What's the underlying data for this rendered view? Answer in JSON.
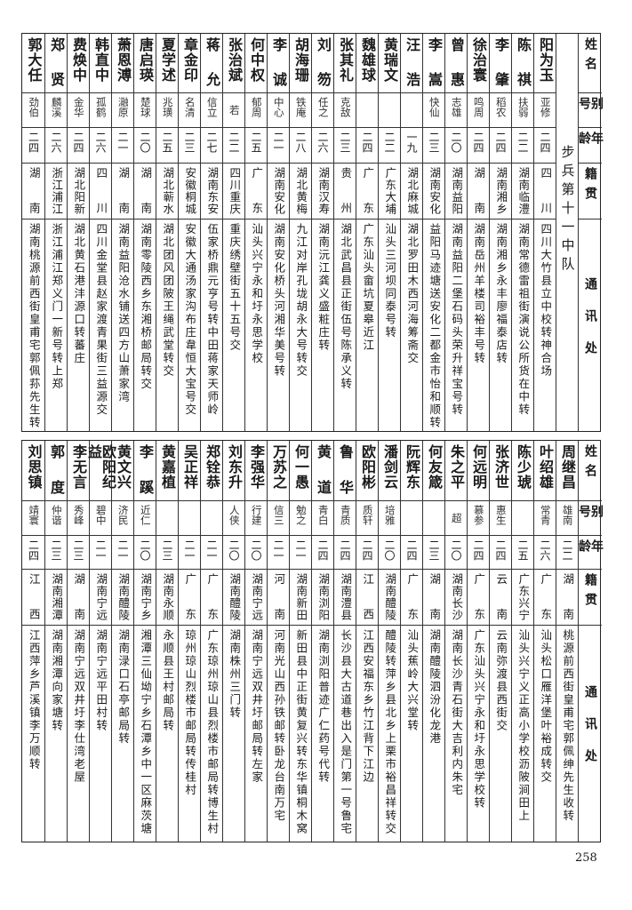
{
  "headers": {
    "name": "姓名",
    "alias": "别号",
    "age": "年龄",
    "origin": "籍贯",
    "address": "通讯处"
  },
  "section_top": {
    "label": "步兵第十一中队",
    "rows": [
      {
        "name": "阳为玉",
        "alias": "亚修",
        "age": "二四",
        "origin": "四川",
        "address": "四川大竹县立中校转神合场"
      },
      {
        "name": "陈祺",
        "alias": "扶弱",
        "age": "二二",
        "origin": "湖南临澧",
        "address": "湖南常德雷祖街演说公所货在中转"
      },
      {
        "name": "李肇",
        "alias": "稻农",
        "age": "二四",
        "origin": "湖南湘乡",
        "address": "湖南湘乡永丰廖福泰店转"
      },
      {
        "name": "徐治寰",
        "alias": "鸣周",
        "age": "二四",
        "origin": "湖南",
        "address": "湖南岳州羊楼司裕丰号转"
      },
      {
        "name": "曾惠",
        "alias": "志雄",
        "age": "二〇",
        "origin": "湖南益阳",
        "address": "湖南益阳二堡石码头荣升祥宝号转"
      },
      {
        "name": "李嵩",
        "alias": "快仙",
        "age": "二三",
        "origin": "湖南安化",
        "address": "益阳马迹塘送安化二都金市怡和顺转"
      },
      {
        "name": "汪浩",
        "alias": "",
        "age": "一九",
        "origin": "湖北麻城",
        "address": "湖北罗田木西河海筹斋交"
      },
      {
        "name": "黄瑞文",
        "alias": "",
        "age": "二二",
        "origin": "广东大埔",
        "address": "汕头三河坝同泰号转"
      },
      {
        "name": "魏雄球",
        "alias": "",
        "age": "二四",
        "origin": "广东",
        "address": "广东汕头畲坑夏皋近江"
      },
      {
        "name": "张其礼",
        "alias": "克敌",
        "age": "二三",
        "origin": "贵州",
        "address": "湖北武昌县正街伍号陈承义转"
      },
      {
        "name": "刘笏",
        "alias": "任之",
        "age": "二六",
        "origin": "湖南汉寿",
        "address": "湖南沅江龚义盛粧庄转"
      },
      {
        "name": "胡海珊",
        "alias": "铁庵",
        "age": "二八",
        "origin": "湖北黄梅",
        "address": "九江对岸孔垅胡永大号转交"
      },
      {
        "name": "李诚",
        "alias": "中心",
        "age": "二一",
        "origin": "湖南安化",
        "address": "湖南安化桥头河湘华美号转"
      },
      {
        "name": "何中权",
        "alias": "郁周",
        "age": "二五",
        "origin": "广东",
        "address": "汕头兴宁永和圩永思学校"
      },
      {
        "name": "张治斌",
        "alias": "若",
        "age": "二二",
        "origin": "四川重庆",
        "address": "重庆绣壁街五十五号交"
      },
      {
        "name": "蒋允",
        "alias": "信立",
        "age": "二七",
        "origin": "湖南东安",
        "address": "伍家桥鼎元亨号转中田蒋家天师岭"
      },
      {
        "name": "章金印",
        "alias": "名清",
        "age": "二三",
        "origin": "安徽桐城",
        "address": "安徽大通汤家沟布庄韋恒大宝号交"
      },
      {
        "name": "夏学述",
        "alias": "兆璜",
        "age": "二五",
        "origin": "湖北蕲水",
        "address": "湖北团风团陂王绳武堂转交"
      },
      {
        "name": "唐启瑛",
        "alias": "楚球",
        "age": "二〇",
        "origin": "湖南",
        "address": "湖南零陵西乡东湘桥邮局转交"
      },
      {
        "name": "萧恩溥",
        "alias": "瀜原",
        "age": "二一",
        "origin": "湖南",
        "address": "湖南益阳沧水铺送四方山萧家湾"
      },
      {
        "name": "韩直中",
        "alias": "孤鹤",
        "age": "二六",
        "origin": "四川",
        "address": "四川金堂县赵家渡青果街三益源交"
      },
      {
        "name": "费焕中",
        "alias": "金华",
        "age": "二四",
        "origin": "湖北阳新",
        "address": "湖北黄石港沣源口转蕃庄"
      },
      {
        "name": "郑贤",
        "alias": "麟溪",
        "age": "二六",
        "origin": "浙江浦江",
        "address": "浙江浦江郑义门一新号转上郑"
      },
      {
        "name": "郭大任",
        "alias": "劲伯",
        "age": "二四",
        "origin": "湖南",
        "address": "湖南桃源前西街皇甫宅郭佩荪先生转"
      }
    ]
  },
  "section_bottom": {
    "rows": [
      {
        "name": "周继昌",
        "alias": "雄南",
        "age": "二二",
        "origin": "湖南",
        "address": "桃源前西街皇甫宅郭佩绅先生收转"
      },
      {
        "name": "叶绍雄",
        "alias": "常青",
        "age": "二六",
        "origin": "广东",
        "address": "汕头松口雁洋堡叶裕成转交"
      },
      {
        "name": "陈少琥",
        "alias": "",
        "age": "二五",
        "origin": "广东兴宁",
        "address": "汕头兴宁义正高小学校沥陂涧田上"
      },
      {
        "name": "张济世",
        "alias": "惠生",
        "age": "二四",
        "origin": "云南",
        "address": "云南弥渡县西街交"
      },
      {
        "name": "何远明",
        "alias": "慕参",
        "age": "二四",
        "origin": "广东",
        "address": "广东汕头兴宁永和圩永思学校转"
      },
      {
        "name": "朱之平",
        "alias": "超",
        "age": "二〇",
        "origin": "湖南长沙",
        "address": "湖南长沙青石街大吉利内朱宅"
      },
      {
        "name": "何友箴",
        "alias": "",
        "age": "二三",
        "origin": "湖南",
        "address": "湖南醴陵泗汾化龙港"
      },
      {
        "name": "阮辉东",
        "alias": "",
        "age": "二四",
        "origin": "广东",
        "address": "汕头蕉岭大兴堂转"
      },
      {
        "name": "潘剑云",
        "alias": "培雅",
        "age": "二〇",
        "origin": "湖南醴陵",
        "address": "醴陵转萍乡县北乡上栗市裕昌祥转交"
      },
      {
        "name": "欧阳彬",
        "alias": "质轩",
        "age": "二四",
        "origin": "江西",
        "address": "江西安福东乡竹江背下江边"
      },
      {
        "name": "鲁华",
        "alias": "青质",
        "age": "二四",
        "origin": "湖南澧县",
        "address": "长沙县大古道巷出入是门第一号鲁宅"
      },
      {
        "name": "黄道",
        "alias": "青白",
        "age": "二四",
        "origin": "湖南浏阳",
        "address": "湖南浏阳普迹广仁药号代转"
      },
      {
        "name": "何一愚",
        "alias": "勉之",
        "age": "二一",
        "origin": "湖南新田",
        "address": "新田县中正街黄复兴转东华镇桐木窝"
      },
      {
        "name": "万苏之",
        "alias": "信三",
        "age": "二一",
        "origin": "河南",
        "address": "河南光山西孙铁邮转卧龙台南万宅"
      },
      {
        "name": "李强华",
        "alias": "行建",
        "age": "二〇",
        "origin": "湖南宁远",
        "address": "湖南宁远双井圩邮局转左家"
      },
      {
        "name": "刘东升",
        "alias": "人侠",
        "age": "二〇",
        "origin": "湖南醴陵",
        "address": "湖南株州三门转"
      },
      {
        "name": "郑铨恭",
        "alias": "",
        "age": "二一",
        "origin": "广东",
        "address": "广东琼州琼山县烈楼市邮局转博生村"
      },
      {
        "name": "吴正祥",
        "alias": "",
        "age": "二一",
        "origin": "广东",
        "address": "琼州琼山烈楼市邮局转传桂村"
      },
      {
        "name": "黄嘉植",
        "alias": "",
        "age": "二三",
        "origin": "湖南永顺",
        "address": "永顺县王村邮局转"
      },
      {
        "name": "李蹊",
        "alias": "近仁",
        "age": "二〇",
        "origin": "湖南宁乡",
        "address": "湘潭三仙坳宁乡石潭乡中一区麻茨塘"
      },
      {
        "name": "黄文兴",
        "alias": "济民",
        "age": "二一",
        "origin": "湖南醴陵",
        "address": "湖南渌口石亭邮局转"
      },
      {
        "name": "欧阳纪益",
        "alias": "碧中",
        "age": "二一",
        "origin": "湖南宁远",
        "address": "湖南宁远平田村转"
      },
      {
        "name": "李无言",
        "alias": "秀峰",
        "age": "二三",
        "origin": "湖南",
        "address": "湖南宁远双井圩李仕湾老屋"
      },
      {
        "name": "郭度",
        "alias": "仲谐",
        "age": "二三",
        "origin": "湖南湘潭",
        "address": "湖南湘潭向家塘转"
      },
      {
        "name": "刘思镇",
        "alias": "靖寰",
        "age": "二四",
        "origin": "江西",
        "address": "江西萍乡芦溪镇李万顺转"
      }
    ]
  },
  "page_number": "258"
}
